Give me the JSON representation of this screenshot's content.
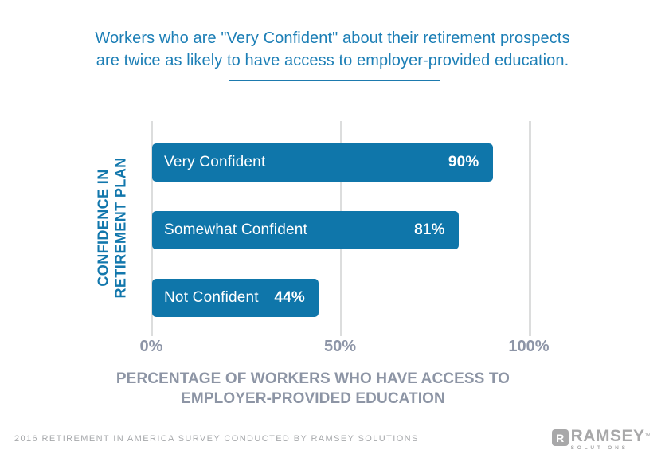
{
  "title": {
    "line1": "Workers who are \"Very Confident\" about their retirement prospects",
    "line2": "are twice as likely to have access to employer-provided education."
  },
  "chart_data": {
    "type": "bar",
    "orientation": "horizontal",
    "title": "Workers who are \"Very Confident\" about their retirement prospects are twice as likely to have access to employer-provided education.",
    "categories": [
      "Very Confident",
      "Somewhat Confident",
      "Not Confident"
    ],
    "values": [
      90,
      81,
      44
    ],
    "value_labels": [
      "90%",
      "81%",
      "44%"
    ],
    "xlabel": "PERCENTAGE OF WORKERS WHO HAVE ACCESS TO EMPLOYER-PROVIDED EDUCATION",
    "ylabel": "CONFIDENCE IN RETIREMENT PLAN",
    "xlim": [
      0,
      100
    ],
    "xticks": [
      {
        "value": 0,
        "label": "0%"
      },
      {
        "value": 50,
        "label": "50%"
      },
      {
        "value": 100,
        "label": "100%"
      }
    ],
    "grid": true,
    "legend": false,
    "bar_color": "#0f76aa"
  },
  "axis": {
    "ylabel_line1": "CONFIDENCE IN",
    "ylabel_line2": "RETIREMENT PLAN",
    "xlabel_line1": "PERCENTAGE OF WORKERS WHO HAVE ACCESS TO",
    "xlabel_line2": "EMPLOYER-PROVIDED EDUCATION"
  },
  "footer": {
    "source": "2016 RETIREMENT IN AMERICA SURVEY CONDUCTED BY RAMSEY SOLUTIONS"
  },
  "logo": {
    "mark": "R",
    "name": "RAMSEY",
    "trademark": "™",
    "subtext": "SOLUTIONS"
  },
  "colors": {
    "bar": "#0f76aa",
    "title_text": "#1d7fb6",
    "divider": "#1d7aae",
    "ylabel_text": "#1277ac",
    "tick_text": "#8d95a7",
    "xlabel_text": "#8d95a5",
    "gridline": "#dcdddd",
    "footer_text": "#a6a8ab",
    "logo_gray": "#a8a8a9"
  }
}
